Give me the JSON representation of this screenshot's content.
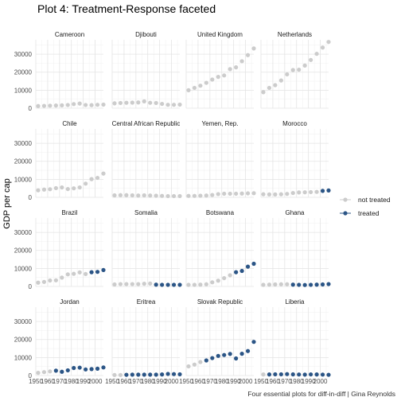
{
  "title": "Plot 4: Treatment-Response faceted",
  "caption": "Four essential plots for diff-in-diff | Gina Reynolds",
  "ylabel": "GDP per cap",
  "legend": [
    {
      "label": "not treated",
      "color": "#cccccc"
    },
    {
      "label": "treated",
      "color": "#2b5586"
    }
  ],
  "chart_data": {
    "type": "scatter",
    "title": "Plot 4: Treatment-Response faceted",
    "ylabel": "GDP per cap",
    "xlabel": "",
    "xlim": [
      1950,
      2007
    ],
    "ylim": [
      0,
      38000
    ],
    "x_ticks": [
      1950,
      1960,
      1970,
      1980,
      1990,
      2000
    ],
    "y_ticks": [
      0,
      10000,
      20000,
      30000
    ],
    "grid": true,
    "legend_position": "right",
    "x": [
      1952,
      1957,
      1962,
      1967,
      1972,
      1977,
      1982,
      1987,
      1992,
      1997,
      2002,
      2007
    ],
    "panels": [
      {
        "name": "Cameroon",
        "values": [
          1200,
          1300,
          1400,
          1500,
          1600,
          1800,
          2300,
          2600,
          1800,
          1700,
          1900,
          2000
        ],
        "treated": [
          0,
          0,
          0,
          0,
          0,
          0,
          0,
          0,
          0,
          0,
          0,
          0
        ]
      },
      {
        "name": "Djibouti",
        "values": [
          2700,
          2900,
          3000,
          3100,
          3200,
          3800,
          3000,
          2900,
          2400,
          1900,
          1900,
          2000
        ],
        "treated": [
          0,
          0,
          0,
          0,
          0,
          0,
          0,
          0,
          0,
          0,
          0,
          0
        ]
      },
      {
        "name": "United Kingdom",
        "values": [
          10000,
          11300,
          12500,
          14100,
          15900,
          17400,
          18200,
          21700,
          22700,
          26100,
          29500,
          33200
        ],
        "treated": [
          0,
          0,
          0,
          0,
          0,
          0,
          0,
          0,
          0,
          0,
          0,
          0
        ]
      },
      {
        "name": "Netherlands",
        "values": [
          8900,
          11300,
          12800,
          15400,
          18800,
          21200,
          21400,
          23700,
          26800,
          30200,
          33700,
          36800
        ],
        "treated": [
          0,
          0,
          0,
          0,
          0,
          0,
          0,
          0,
          0,
          0,
          0,
          0
        ]
      },
      {
        "name": "Chile",
        "values": [
          3900,
          4300,
          4500,
          5100,
          5500,
          4600,
          5000,
          5500,
          7600,
          10100,
          10800,
          13200
        ],
        "treated": [
          0,
          0,
          0,
          0,
          0,
          0,
          0,
          0,
          0,
          0,
          0,
          0
        ]
      },
      {
        "name": "Central African Republic",
        "values": [
          1100,
          1200,
          1200,
          1100,
          1000,
          1100,
          1000,
          900,
          800,
          700,
          700,
          700
        ],
        "treated": [
          0,
          0,
          0,
          0,
          0,
          0,
          0,
          0,
          0,
          0,
          0,
          0
        ]
      },
      {
        "name": "Yemen, Rep.",
        "values": [
          800,
          800,
          900,
          1000,
          1300,
          1800,
          2000,
          2000,
          2000,
          2100,
          2200,
          2300
        ],
        "treated": [
          0,
          0,
          0,
          0,
          0,
          0,
          0,
          0,
          0,
          0,
          0,
          0
        ]
      },
      {
        "name": "Morocco",
        "values": [
          1700,
          1600,
          1600,
          1700,
          1900,
          2400,
          2700,
          2800,
          2900,
          3000,
          3600,
          3800
        ],
        "treated": [
          0,
          0,
          0,
          0,
          0,
          0,
          0,
          0,
          0,
          0,
          1,
          1
        ]
      },
      {
        "name": "Brazil",
        "values": [
          2100,
          2500,
          3300,
          3400,
          4900,
          6700,
          7000,
          7800,
          6900,
          7900,
          8100,
          9100
        ],
        "treated": [
          0,
          0,
          0,
          0,
          0,
          0,
          0,
          0,
          0,
          1,
          1,
          1
        ]
      },
      {
        "name": "Somalia",
        "values": [
          1100,
          1300,
          1300,
          1300,
          1300,
          1500,
          1600,
          1000,
          900,
          900,
          900,
          900
        ],
        "treated": [
          0,
          0,
          0,
          0,
          0,
          0,
          0,
          1,
          1,
          1,
          1,
          1
        ]
      },
      {
        "name": "Botswana",
        "values": [
          900,
          900,
          1000,
          1200,
          2300,
          3200,
          4600,
          6200,
          7900,
          8600,
          11000,
          12600
        ],
        "treated": [
          0,
          0,
          0,
          0,
          0,
          0,
          0,
          0,
          1,
          1,
          1,
          1
        ]
      },
      {
        "name": "Ghana",
        "values": [
          900,
          1000,
          1100,
          1200,
          1200,
          1000,
          900,
          800,
          900,
          1000,
          1100,
          1300
        ],
        "treated": [
          0,
          0,
          0,
          0,
          0,
          1,
          1,
          1,
          1,
          1,
          1,
          1
        ]
      },
      {
        "name": "Jordan",
        "values": [
          1500,
          1900,
          2300,
          2700,
          2100,
          2900,
          4200,
          4400,
          3400,
          3600,
          3800,
          4500
        ],
        "treated": [
          0,
          0,
          0,
          1,
          1,
          1,
          1,
          1,
          1,
          1,
          1,
          1
        ]
      },
      {
        "name": "Eritrea",
        "values": [
          300,
          300,
          400,
          500,
          500,
          500,
          500,
          500,
          600,
          900,
          800,
          700
        ],
        "treated": [
          0,
          0,
          1,
          1,
          1,
          1,
          1,
          1,
          1,
          1,
          1,
          1
        ]
      },
      {
        "name": "Slovak Republic",
        "values": [
          5100,
          6100,
          7500,
          8400,
          9700,
          10900,
          11400,
          12000,
          9500,
          12100,
          13600,
          18700
        ],
        "treated": [
          0,
          0,
          0,
          1,
          1,
          1,
          1,
          1,
          1,
          1,
          1,
          1
        ]
      },
      {
        "name": "Liberia",
        "values": [
          600,
          600,
          700,
          700,
          800,
          650,
          570,
          510,
          640,
          610,
          530,
          410
        ],
        "treated": [
          0,
          1,
          1,
          1,
          1,
          1,
          1,
          1,
          1,
          1,
          1,
          1
        ]
      }
    ]
  }
}
